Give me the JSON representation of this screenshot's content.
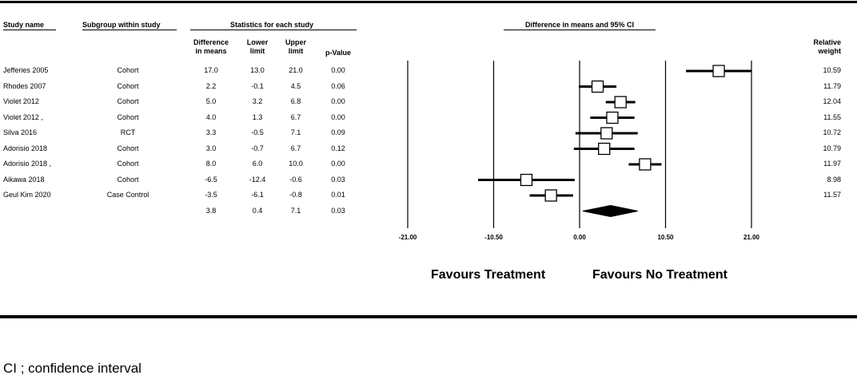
{
  "headers": {
    "study_name": "Study name",
    "subgroup": "Subgroup within study",
    "statistics": "Statistics for each study",
    "difference_ci": "Difference in means and 95% CI",
    "diff_line1": "Difference",
    "diff_line2": "in means",
    "lower_line1": "Lower",
    "lower_line2": "limit",
    "upper_line1": "Upper",
    "upper_line2": "limit",
    "pvalue": "p-Value",
    "weight_line1": "Relative",
    "weight_line2": "weight"
  },
  "favours_treatment": "Favours Treatment",
  "favours_no_treatment": "Favours No Treatment",
  "footnote": "CI ; confidence interval",
  "chart_data": {
    "type": "forest",
    "xlim": [
      -21,
      21
    ],
    "ticks": [
      -21,
      -10.5,
      0,
      10.5,
      21
    ],
    "tick_labels": [
      "-21.00",
      "-10.50",
      "0.00",
      "10.50",
      "21.00"
    ],
    "studies": [
      {
        "name": "Jefferies 2005",
        "subgroup": "Cohort",
        "diff": 17.0,
        "lower": 13.0,
        "upper": 21.0,
        "diff_text": "17.0",
        "lower_text": "13.0",
        "upper_text": "21.0",
        "p": "0.00",
        "weight": "10.59"
      },
      {
        "name": "Rhodes 2007",
        "subgroup": "Cohort",
        "diff": 2.2,
        "lower": -0.1,
        "upper": 4.5,
        "diff_text": "2.2",
        "lower_text": "-0.1",
        "upper_text": "4.5",
        "p": "0.06",
        "weight": "11.79"
      },
      {
        "name": "Violet 2012",
        "subgroup": "Cohort",
        "diff": 5.0,
        "lower": 3.2,
        "upper": 6.8,
        "diff_text": "5.0",
        "lower_text": "3.2",
        "upper_text": "6.8",
        "p": "0.00",
        "weight": "12.04"
      },
      {
        "name": "Violet 2012 ,",
        "subgroup": "Cohort",
        "diff": 4.0,
        "lower": 1.3,
        "upper": 6.7,
        "diff_text": "4.0",
        "lower_text": "1.3",
        "upper_text": "6.7",
        "p": "0.00",
        "weight": "11.55"
      },
      {
        "name": "Silva 2016",
        "subgroup": "RCT",
        "diff": 3.3,
        "lower": -0.5,
        "upper": 7.1,
        "diff_text": "3.3",
        "lower_text": "-0.5",
        "upper_text": "7.1",
        "p": "0.09",
        "weight": "10.72"
      },
      {
        "name": "Adorisio 2018",
        "subgroup": "Cohort",
        "diff": 3.0,
        "lower": -0.7,
        "upper": 6.7,
        "diff_text": "3.0",
        "lower_text": "-0.7",
        "upper_text": "6.7",
        "p": "0.12",
        "weight": "10.79"
      },
      {
        "name": "Adorisio 2018 ,",
        "subgroup": "Cohort",
        "diff": 8.0,
        "lower": 6.0,
        "upper": 10.0,
        "diff_text": "8.0",
        "lower_text": "6.0",
        "upper_text": "10.0",
        "p": "0.00",
        "weight": "11.97"
      },
      {
        "name": "Aikawa 2018",
        "subgroup": "Cohort",
        "diff": -6.5,
        "lower": -12.4,
        "upper": -0.6,
        "diff_text": "-6.5",
        "lower_text": "-12.4",
        "upper_text": "-0.6",
        "p": "0.03",
        "weight": "8.98"
      },
      {
        "name": "Geul Kim 2020",
        "subgroup": "Case Control",
        "diff": -3.5,
        "lower": -6.1,
        "upper": -0.8,
        "diff_text": "-3.5",
        "lower_text": "-6.1",
        "upper_text": "-0.8",
        "p": "0.01",
        "weight": "11.57"
      }
    ],
    "summary": {
      "diff": 3.8,
      "lower": 0.4,
      "upper": 7.1,
      "diff_text": "3.8",
      "lower_text": "0.4",
      "upper_text": "7.1",
      "p": "0.03"
    }
  }
}
